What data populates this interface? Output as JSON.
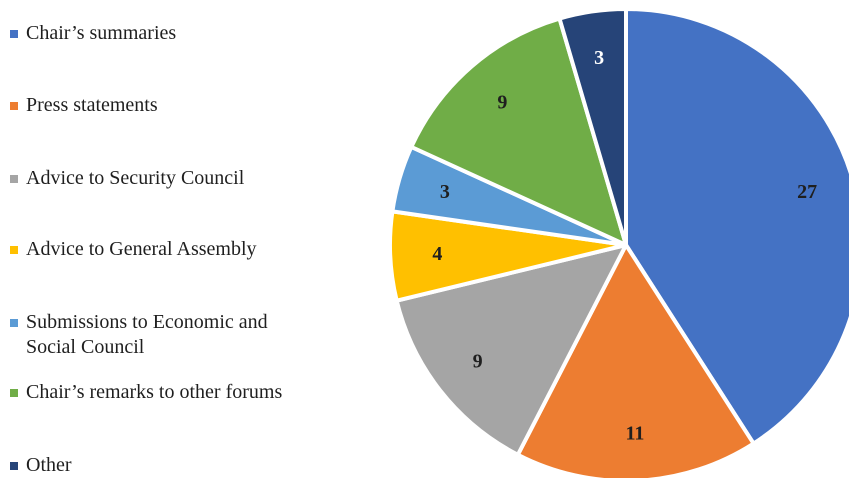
{
  "chart_data": {
    "type": "pie",
    "categories": [
      "Chair’s summaries",
      "Press statements",
      "Advice to Security Council",
      "Advice to General Assembly",
      "Submissions to Economic and\nSocial Council",
      "Chair’s remarks to other forums",
      "Other"
    ],
    "values": [
      27,
      11,
      9,
      4,
      3,
      9,
      3
    ],
    "data_labels": [
      "27",
      "11",
      "9",
      "4",
      "3",
      "9",
      "3"
    ],
    "colors": [
      "#4472C4",
      "#ED7D31",
      "#A5A5A5",
      "#FFC000",
      "#5B9BD5",
      "#70AD47",
      "#264478"
    ],
    "label_colors": [
      "#1f1f1f",
      "#1f1f1f",
      "#1f1f1f",
      "#1f1f1f",
      "#1f1f1f",
      "#1f1f1f",
      "#ffffff"
    ],
    "start_angle_deg": 0,
    "direction": "clockwise",
    "legend_placement": "left"
  }
}
